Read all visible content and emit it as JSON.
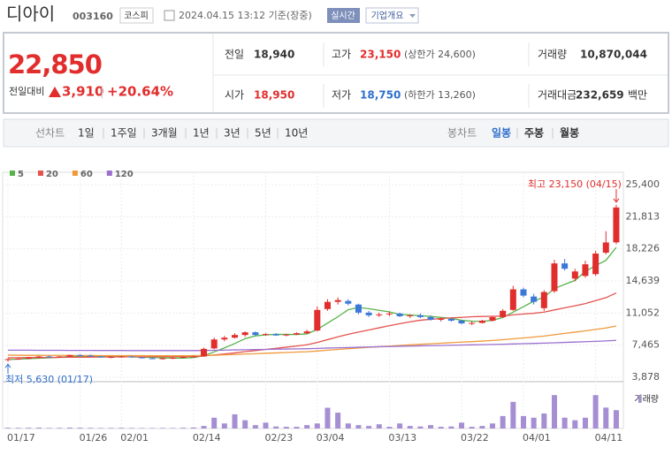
{
  "header": {
    "name": "디아이",
    "code": "003160",
    "market": "코스피",
    "timestamp": "2024.04.15 13:12 기준(장중)",
    "realtime_button": "실시간",
    "company_button": "기업개요"
  },
  "quote": {
    "price": "22,850",
    "change_label": "전일대비",
    "change": "3,910",
    "change_rate": "+20.64%",
    "stats": [
      {
        "label": "전일",
        "value": "18,940"
      },
      {
        "label": "고가",
        "value": "23,150",
        "note": "(상한가 24,600)"
      },
      {
        "label": "거래량",
        "value": "10,870,044"
      },
      {
        "label": "시가",
        "value": "18,950"
      },
      {
        "label": "저가",
        "value": "18,750",
        "note": "(하한가 13,260)"
      },
      {
        "label": "거래대금",
        "value": "232,659",
        "unit": "백만"
      }
    ]
  },
  "tabs": {
    "line_chart": "선차트",
    "periods": [
      "1일",
      "1주일",
      "3개월",
      "1년",
      "3년",
      "5년",
      "10년"
    ],
    "candle_chart": "봉차트",
    "candle_periods": [
      "일봉",
      "주봉",
      "월봉"
    ]
  },
  "chart_data": {
    "type": "candlestick",
    "categories": [
      "01/17",
      null,
      null,
      null,
      null,
      null,
      null,
      "01/26",
      null,
      null,
      null,
      "02/01",
      null,
      null,
      null,
      null,
      null,
      null,
      "02/14",
      null,
      null,
      null,
      null,
      null,
      null,
      "02/23",
      null,
      null,
      null,
      null,
      "03/04",
      null,
      null,
      null,
      null,
      null,
      null,
      "03/13",
      null,
      null,
      null,
      null,
      null,
      null,
      "03/22",
      null,
      null,
      null,
      null,
      null,
      "04/01",
      null,
      null,
      null,
      null,
      null,
      null,
      "04/11",
      null,
      null
    ],
    "open": [
      5800,
      5900,
      5950,
      6100,
      6200,
      6150,
      6200,
      6350,
      6300,
      6200,
      6100,
      6150,
      6200,
      6100,
      6000,
      5950,
      6000,
      6050,
      6150,
      6200,
      7100,
      8100,
      8300,
      8600,
      8900,
      8600,
      8700,
      8550,
      8650,
      8800,
      9100,
      11500,
      12300,
      12400,
      12000,
      11100,
      10800,
      10900,
      11000,
      10700,
      10800,
      10600,
      10300,
      10400,
      10200,
      9900,
      9950,
      10200,
      10600,
      11400,
      13700,
      12900,
      11600,
      13500,
      16600,
      14900,
      15200,
      15400,
      17800,
      18950
    ],
    "high": [
      6000,
      6050,
      6150,
      6250,
      6300,
      6250,
      6400,
      6450,
      6400,
      6250,
      6200,
      6250,
      6250,
      6150,
      6100,
      6050,
      6100,
      6200,
      6300,
      7200,
      8300,
      8500,
      8800,
      9000,
      9000,
      8800,
      8800,
      8750,
      8900,
      9200,
      11800,
      12600,
      12800,
      12600,
      12100,
      11300,
      11100,
      11200,
      11100,
      10900,
      11000,
      10800,
      10500,
      10500,
      10300,
      10100,
      10300,
      10700,
      11500,
      14100,
      13900,
      13200,
      13600,
      17000,
      17100,
      16000,
      16900,
      18000,
      20200,
      23150
    ],
    "low": [
      5630,
      5850,
      5900,
      6000,
      6100,
      6050,
      6150,
      6250,
      6150,
      6050,
      6000,
      6050,
      6050,
      5950,
      5900,
      5850,
      5900,
      6000,
      6100,
      6150,
      7000,
      7900,
      8200,
      8400,
      8500,
      8500,
      8500,
      8450,
      8600,
      8700,
      9000,
      11300,
      12000,
      11900,
      10900,
      10600,
      10600,
      10700,
      10600,
      10500,
      10500,
      10200,
      10100,
      10100,
      9800,
      9700,
      9900,
      10100,
      10500,
      11300,
      12800,
      12000,
      11300,
      13300,
      15800,
      14600,
      15000,
      15200,
      17600,
      18750
    ],
    "close": [
      5900,
      5950,
      6100,
      6200,
      6150,
      6200,
      6350,
      6300,
      6200,
      6100,
      6150,
      6200,
      6100,
      6000,
      5950,
      6000,
      6050,
      6150,
      6200,
      7050,
      8100,
      8300,
      8600,
      8900,
      8600,
      8700,
      8550,
      8650,
      8800,
      9000,
      11400,
      12300,
      12500,
      12100,
      11100,
      10800,
      10900,
      11000,
      10700,
      10800,
      10600,
      10300,
      10400,
      10200,
      9900,
      9950,
      10200,
      10600,
      11300,
      13700,
      13000,
      12300,
      13400,
      16600,
      16000,
      15700,
      16500,
      17700,
      18940,
      22850
    ],
    "up_color": "#e22d2d",
    "down_color": "#3b78d8",
    "moving_averages": [
      {
        "name": "5",
        "color": "#58b34a",
        "values": [
          5850,
          5900,
          5950,
          6000,
          6050,
          6120,
          6200,
          6240,
          6250,
          6230,
          6200,
          6180,
          6150,
          6120,
          6090,
          6050,
          6020,
          6020,
          6080,
          6290,
          6710,
          7160,
          7650,
          8190,
          8500,
          8620,
          8670,
          8660,
          8660,
          8720,
          9220,
          9930,
          10640,
          11420,
          11680,
          11540,
          11360,
          11180,
          10900,
          10840,
          10760,
          10680,
          10560,
          10460,
          10240,
          10150,
          10130,
          10230,
          10550,
          11150,
          11760,
          12380,
          12840,
          13780,
          14260,
          14700,
          15700,
          16360,
          16940,
          18390
        ]
      },
      {
        "name": "20",
        "color": "#e5534f",
        "values": [
          6050,
          6060,
          6070,
          6080,
          6090,
          6100,
          6110,
          6120,
          6130,
          6140,
          6150,
          6150,
          6160,
          6160,
          6170,
          6170,
          6180,
          6190,
          6200,
          6260,
          6370,
          6480,
          6600,
          6740,
          6860,
          6990,
          7110,
          7240,
          7370,
          7510,
          7770,
          8080,
          8390,
          8680,
          8930,
          9160,
          9400,
          9640,
          9860,
          10070,
          10250,
          10350,
          10440,
          10510,
          10570,
          10640,
          10670,
          10690,
          10720,
          10850,
          10950,
          11030,
          11160,
          11400,
          11640,
          11860,
          12110,
          12440,
          12770,
          13300
        ]
      },
      {
        "name": "60",
        "color": "#f0993a",
        "values": [
          6350,
          6340,
          6330,
          6330,
          6320,
          6320,
          6320,
          6310,
          6310,
          6300,
          6300,
          6300,
          6290,
          6290,
          6280,
          6280,
          6280,
          6280,
          6290,
          6310,
          6340,
          6380,
          6420,
          6470,
          6510,
          6560,
          6600,
          6640,
          6690,
          6730,
          6810,
          6900,
          6990,
          7070,
          7150,
          7220,
          7290,
          7360,
          7430,
          7500,
          7560,
          7620,
          7680,
          7740,
          7800,
          7860,
          7920,
          7990,
          8070,
          8170,
          8270,
          8370,
          8480,
          8630,
          8780,
          8920,
          9060,
          9220,
          9380,
          9600
        ]
      },
      {
        "name": "120",
        "color": "#9b6fd0",
        "values": [
          6900,
          6900,
          6900,
          6890,
          6890,
          6890,
          6880,
          6880,
          6880,
          6870,
          6870,
          6870,
          6860,
          6860,
          6860,
          6860,
          6860,
          6860,
          6860,
          6870,
          6890,
          6910,
          6930,
          6950,
          6970,
          6990,
          7010,
          7030,
          7050,
          7070,
          7100,
          7140,
          7170,
          7200,
          7230,
          7260,
          7290,
          7310,
          7340,
          7360,
          7390,
          7410,
          7430,
          7460,
          7480,
          7500,
          7520,
          7540,
          7570,
          7600,
          7630,
          7660,
          7690,
          7730,
          7770,
          7810,
          7850,
          7890,
          7940,
          8000
        ]
      }
    ],
    "ylim": [
      3878,
      25400
    ],
    "yticks": [
      {
        "value": 3878,
        "label": "3,878"
      },
      {
        "value": 7465,
        "label": "7,465"
      },
      {
        "value": 11052,
        "label": "11,052"
      },
      {
        "value": 14639,
        "label": "14,639"
      },
      {
        "value": 18226,
        "label": "18,226"
      },
      {
        "value": 21813,
        "label": "21,813"
      },
      {
        "value": 25400,
        "label": "25,400"
      }
    ],
    "grid": true,
    "volume_label": "거래량",
    "volume_color": "#a68ed3",
    "volume": [
      420000,
      380000,
      450000,
      500000,
      350000,
      400000,
      520000,
      480000,
      380000,
      300000,
      350000,
      400000,
      320000,
      280000,
      300000,
      350000,
      300000,
      450000,
      600000,
      1500000,
      6400000,
      3000000,
      8400000,
      4900000,
      2000000,
      3500000,
      1200000,
      1000000,
      1000000,
      2000000,
      3000000,
      12300000,
      9400000,
      3000000,
      2000000,
      1500000,
      2500000,
      1000000,
      3000000,
      1500000,
      1200000,
      2000000,
      1000000,
      1200000,
      3500000,
      1000000,
      1500000,
      3000000,
      7400000,
      15800000,
      7400000,
      6400000,
      8900000,
      19800000,
      6400000,
      4900000,
      6400000,
      19800000,
      12400000,
      10870044
    ],
    "vlim": [
      0,
      26200000
    ],
    "high_annotation": "최고 23,150 (04/15)",
    "low_annotation": "최저 5,630 (01/17)"
  }
}
